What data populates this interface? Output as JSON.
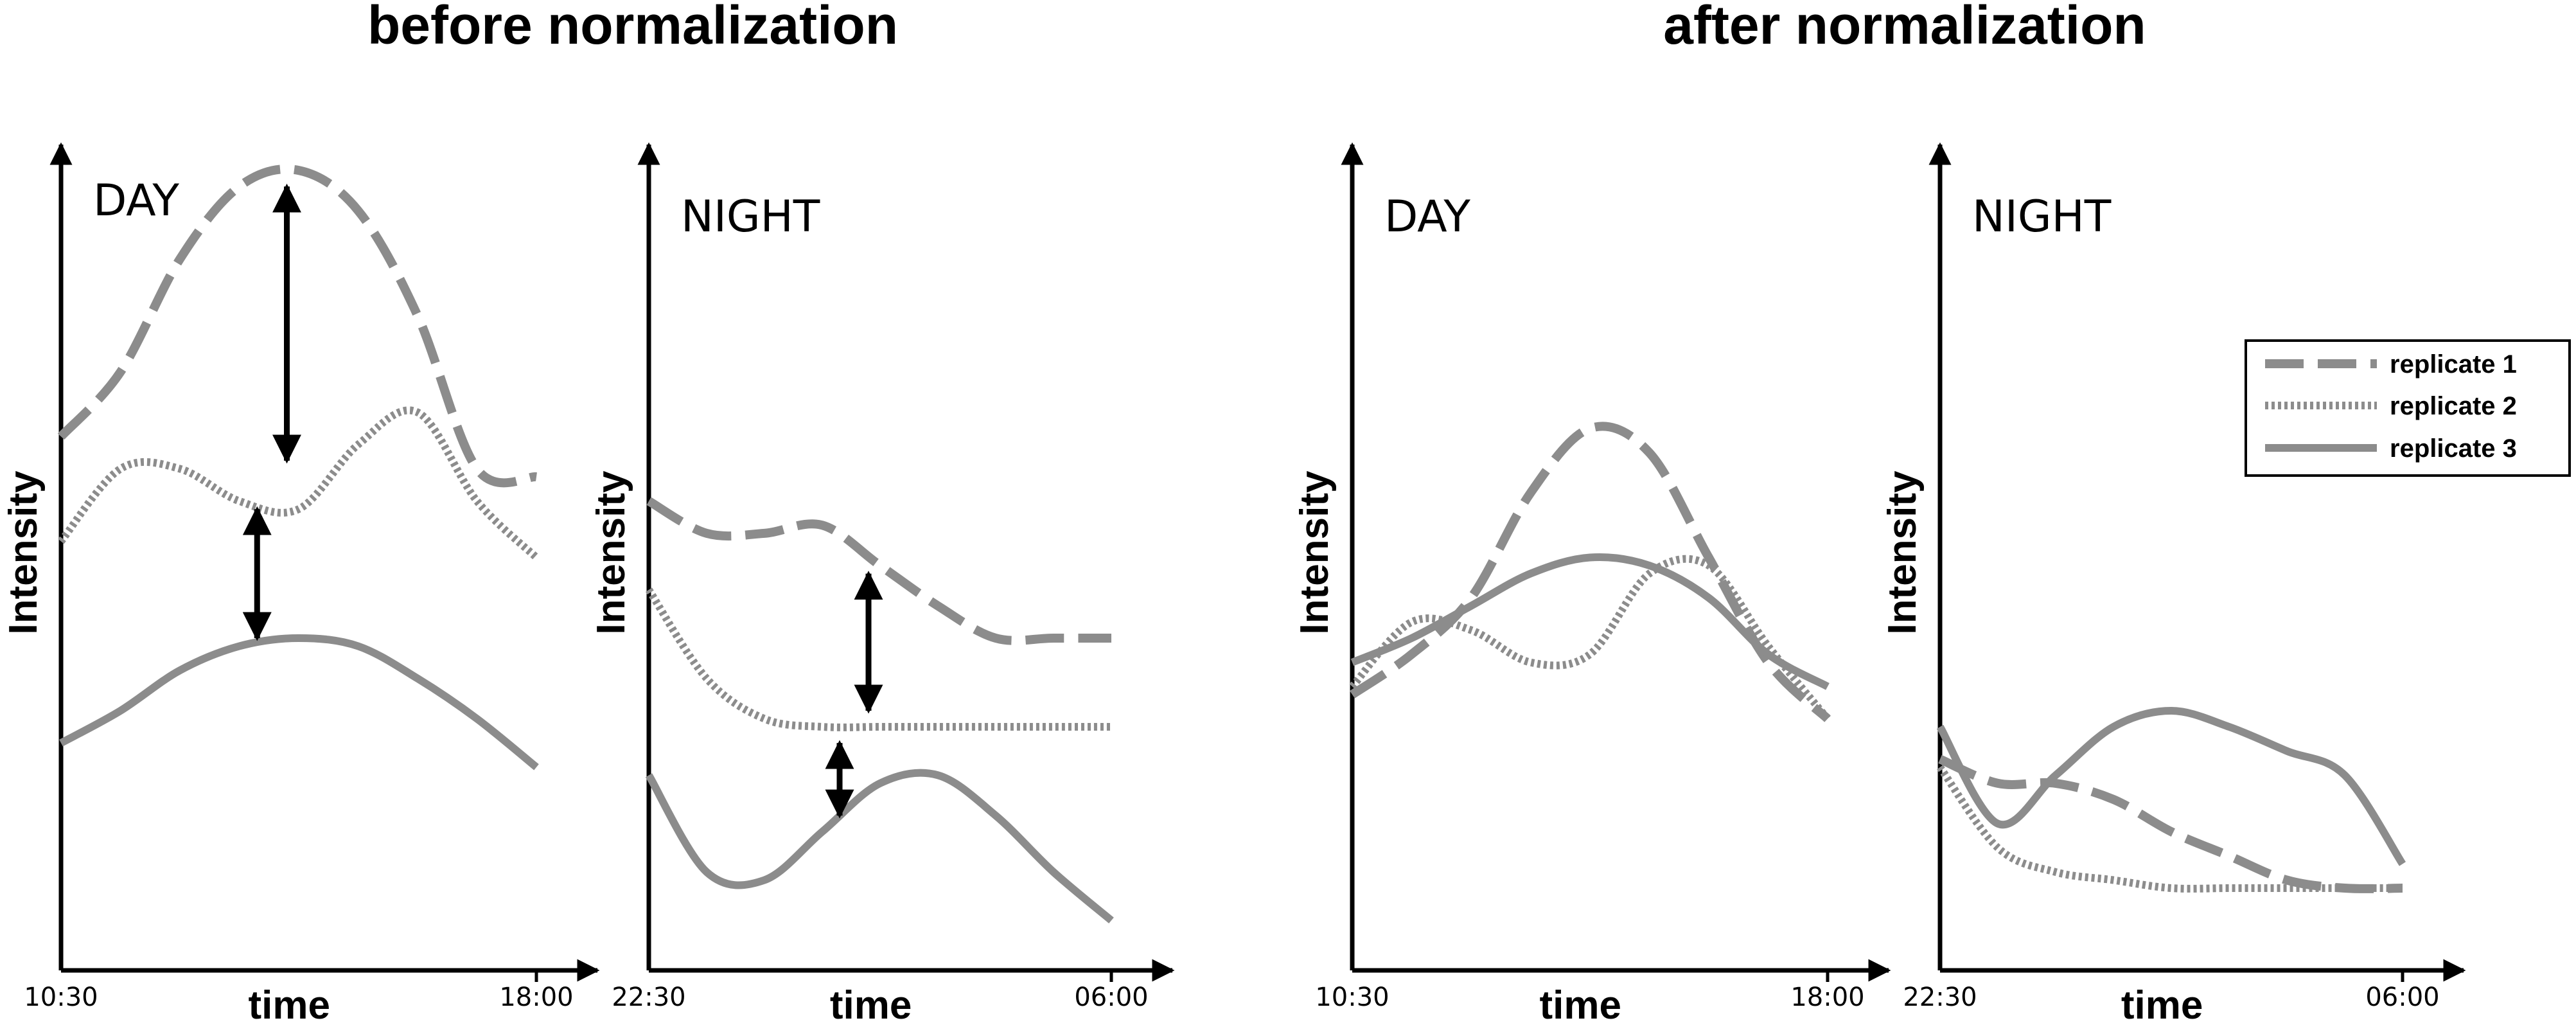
{
  "group_titles": {
    "before": "before normalization",
    "after": "after normalization"
  },
  "legend": {
    "entries": [
      "replicate 1",
      "replicate 2",
      "replicate 3"
    ]
  },
  "colors": {
    "series": "#8c8c8c",
    "axis": "#000000",
    "arrow": "#000000"
  },
  "chart_data": [
    {
      "type": "line",
      "group": "before normalization",
      "title": "DAY",
      "xlabel": "time",
      "ylabel": "Intensity",
      "xtick_labels": [
        "10:30",
        "18:00"
      ],
      "x": [
        0,
        1,
        2,
        3,
        4,
        5,
        6,
        7,
        8
      ],
      "ylim": [
        0,
        100
      ],
      "series": [
        {
          "name": "replicate 1",
          "values": [
            65,
            73,
            87,
            96,
            98,
            93,
            80,
            61,
            60
          ]
        },
        {
          "name": "replicate 2",
          "values": [
            52,
            61,
            61,
            57,
            56,
            64,
            68,
            57,
            50
          ]
        },
        {
          "name": "replicate 3",
          "values": [
            27,
            31,
            36,
            39,
            40,
            39,
            35,
            30,
            24
          ]
        }
      ],
      "annotations": [
        {
          "type": "double-arrow",
          "x": 3.8,
          "y_from": 96,
          "y_to": 62
        },
        {
          "type": "double-arrow",
          "x": 3.3,
          "y_from": 56,
          "y_to": 40
        }
      ]
    },
    {
      "type": "line",
      "group": "before normalization",
      "title": "NIGHT",
      "xlabel": "time",
      "ylabel": "Intensity",
      "xtick_labels": [
        "22:30",
        "06:00"
      ],
      "x": [
        0,
        1,
        2,
        3,
        4,
        5,
        6,
        7,
        8
      ],
      "ylim": [
        0,
        100
      ],
      "series": [
        {
          "name": "replicate 1",
          "values": [
            57,
            53,
            53,
            54,
            49,
            44,
            40,
            40,
            40
          ]
        },
        {
          "name": "replicate 2",
          "values": [
            46,
            35,
            30,
            29,
            29,
            29,
            29,
            29,
            29
          ]
        },
        {
          "name": "replicate 3",
          "values": [
            23,
            11,
            10,
            16,
            22,
            23,
            18,
            11,
            5
          ]
        }
      ],
      "annotations": [
        {
          "type": "double-arrow",
          "x": 3.8,
          "y_from": 48,
          "y_to": 31
        },
        {
          "type": "double-arrow",
          "x": 3.3,
          "y_from": 27,
          "y_to": 18
        }
      ]
    },
    {
      "type": "line",
      "group": "after normalization",
      "title": "DAY",
      "xlabel": "time",
      "ylabel": "Intensity",
      "xtick_labels": [
        "10:30",
        "18:00"
      ],
      "x": [
        0,
        1,
        2,
        3,
        4,
        5,
        6,
        7,
        8
      ],
      "ylim": [
        0,
        100
      ],
      "series": [
        {
          "name": "replicate 1",
          "values": [
            33,
            38,
            45,
            58,
            66,
            63,
            50,
            37,
            30
          ]
        },
        {
          "name": "replicate 2",
          "values": [
            34,
            42,
            41,
            37,
            38,
            48,
            49,
            39,
            30
          ]
        },
        {
          "name": "replicate 3",
          "values": [
            37,
            40,
            44,
            48,
            50,
            49,
            45,
            38,
            34
          ]
        }
      ]
    },
    {
      "type": "line",
      "group": "after normalization",
      "title": "NIGHT",
      "xlabel": "time",
      "ylabel": "Intensity",
      "xtick_labels": [
        "22:30",
        "06:00"
      ],
      "x": [
        0,
        1,
        2,
        3,
        4,
        5,
        6,
        7,
        8
      ],
      "ylim": [
        0,
        100
      ],
      "series": [
        {
          "name": "replicate 1",
          "values": [
            25,
            22,
            22,
            20,
            16,
            13,
            10,
            9,
            9
          ]
        },
        {
          "name": "replicate 2",
          "values": [
            24,
            14,
            11,
            10,
            9,
            9,
            9,
            9,
            9
          ]
        },
        {
          "name": "replicate 3",
          "values": [
            29,
            17,
            23,
            29,
            31,
            29,
            26,
            23,
            12
          ]
        }
      ]
    }
  ]
}
